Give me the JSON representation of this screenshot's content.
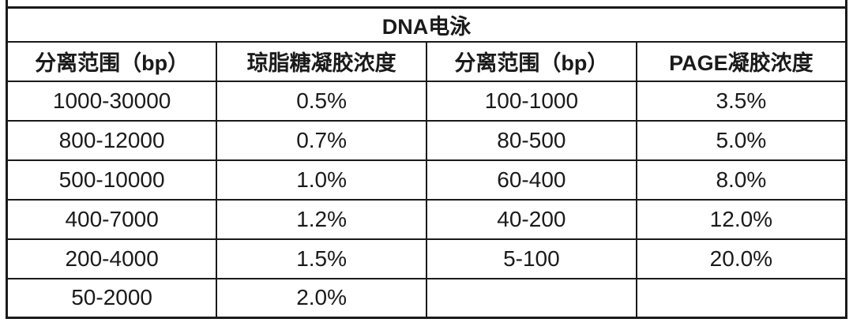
{
  "table": {
    "title": "DNA电泳",
    "headers": [
      "分离范围（bp）",
      "琼脂糖凝胶浓度",
      "分离范围（bp）",
      "PAGE凝胶浓度"
    ],
    "rows": [
      [
        "1000-30000",
        "0.5%",
        "100-1000",
        "3.5%"
      ],
      [
        "800-12000",
        "0.7%",
        "80-500",
        "5.0%"
      ],
      [
        "500-10000",
        "1.0%",
        "60-400",
        "8.0%"
      ],
      [
        "400-7000",
        "1.2%",
        "40-200",
        "12.0%"
      ],
      [
        "200-4000",
        "1.5%",
        "5-100",
        "20.0%"
      ],
      [
        "50-2000",
        "2.0%",
        "",
        ""
      ]
    ],
    "colors": {
      "border": "#1a1a1a",
      "text": "#1a1a1a",
      "background": "#ffffff"
    }
  }
}
